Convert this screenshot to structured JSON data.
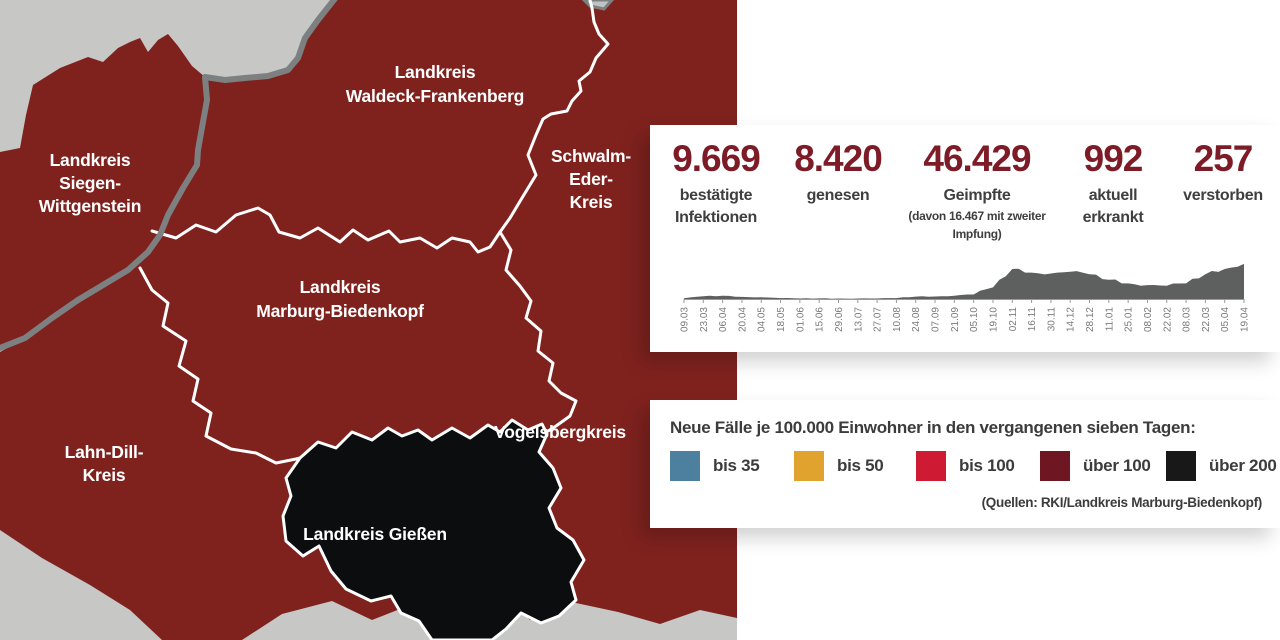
{
  "map": {
    "background_color": "#c7c7c6",
    "fill_over100": "#7f221e",
    "fill_over200": "#0c0d0e",
    "district_border_color": "#ffffff",
    "state_border_color": "#7c8080",
    "regions": [
      {
        "id": "siegen-wittgenstein",
        "lines": [
          "Landkreis",
          "Siegen-",
          "Wittgenstein"
        ]
      },
      {
        "id": "waldeck-frankenberg",
        "lines": [
          "Landkreis",
          "Waldeck-Frankenberg"
        ]
      },
      {
        "id": "schwalm-eder",
        "lines": [
          "Schwalm-",
          "Eder-",
          "Kreis"
        ]
      },
      {
        "id": "marburg-biedenkopf",
        "lines": [
          "Landkreis",
          "Marburg-Biedenkopf"
        ]
      },
      {
        "id": "lahn-dill",
        "lines": [
          "Lahn-Dill-",
          "Kreis"
        ]
      },
      {
        "id": "vogelsberg",
        "lines": [
          "Vogelsbergkreis"
        ]
      },
      {
        "id": "giessen",
        "lines": [
          "Landkreis Gießen"
        ]
      }
    ]
  },
  "stats": [
    {
      "value": "9.669",
      "label1": "bestätigte",
      "label2": "Infektionen",
      "sub": ""
    },
    {
      "value": "8.420",
      "label1": "genesen",
      "label2": "",
      "sub": ""
    },
    {
      "value": "46.429",
      "label1": "Geimpfte",
      "label2": "",
      "sub": "(davon 16.467 mit zweiter Impfung)"
    },
    {
      "value": "992",
      "label1": "aktuell",
      "label2": "erkrankt",
      "sub": ""
    },
    {
      "value": "257",
      "label1": "verstorben",
      "label2": "",
      "sub": ""
    }
  ],
  "chart_data": {
    "type": "area",
    "title": "",
    "xlabel": "",
    "ylabel": "",
    "fill_color": "#5e6060",
    "axis_color": "#9a9a9a",
    "tick_label_color": "#7a7a7a",
    "grid": false,
    "legend_position": "none",
    "ylim": [
      0,
      100
    ],
    "categories": [
      "09.03",
      "23.03",
      "06.04",
      "20.04",
      "04.05",
      "18.05",
      "01.06",
      "15.06",
      "29.06",
      "13.07",
      "27.07",
      "10.08",
      "24.08",
      "07.09",
      "21.09",
      "05.10",
      "19.10",
      "02.11",
      "16.11",
      "30.11",
      "14.12",
      "28.12",
      "11.01",
      "25.01",
      "08.02",
      "22.02",
      "08.03",
      "22.03",
      "05.04",
      "19.04"
    ],
    "values": [
      2,
      7,
      8,
      5,
      4,
      2.5,
      1.5,
      1.5,
      1,
      1,
      1.5,
      2.5,
      6,
      6,
      8,
      13,
      30,
      75,
      65,
      62,
      70,
      63,
      48,
      38,
      33,
      35,
      40,
      62,
      74,
      86
    ]
  },
  "legend": {
    "title": "Neue Fälle je 100.000 Einwohner in den vergangenen sieben Tagen:",
    "items": [
      {
        "label": "bis 35",
        "color": "#4d7f9e"
      },
      {
        "label": "bis 50",
        "color": "#e0a32e"
      },
      {
        "label": "bis 100",
        "color": "#ce1a33"
      },
      {
        "label": "über 100",
        "color": "#6e1722"
      },
      {
        "label": "über 200",
        "color": "#181818"
      }
    ],
    "source": "(Quellen: RKI/Landkreis Marburg-Biedenkopf)"
  }
}
